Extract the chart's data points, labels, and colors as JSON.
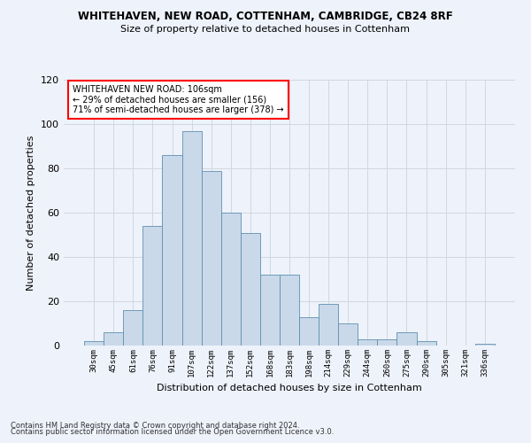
{
  "title1": "WHITEHAVEN, NEW ROAD, COTTENHAM, CAMBRIDGE, CB24 8RF",
  "title2": "Size of property relative to detached houses in Cottenham",
  "xlabel": "Distribution of detached houses by size in Cottenham",
  "ylabel": "Number of detached properties",
  "bin_labels": [
    "30sqm",
    "45sqm",
    "61sqm",
    "76sqm",
    "91sqm",
    "107sqm",
    "122sqm",
    "137sqm",
    "152sqm",
    "168sqm",
    "183sqm",
    "198sqm",
    "214sqm",
    "229sqm",
    "244sqm",
    "260sqm",
    "275sqm",
    "290sqm",
    "305sqm",
    "321sqm",
    "336sqm"
  ],
  "bar_heights": [
    2,
    6,
    16,
    54,
    86,
    97,
    79,
    60,
    51,
    32,
    32,
    13,
    19,
    10,
    3,
    3,
    6,
    2,
    0,
    0,
    1
  ],
  "bar_color": "#c9d9ea",
  "bar_edge_color": "#5f8faf",
  "annotation_line1": "WHITEHAVEN NEW ROAD: 106sqm",
  "annotation_line2": "← 29% of detached houses are smaller (156)",
  "annotation_line3": "71% of semi-detached houses are larger (378) →",
  "ylim": [
    0,
    120
  ],
  "yticks": [
    0,
    20,
    40,
    60,
    80,
    100,
    120
  ],
  "grid_color": "#d0d8e0",
  "background_color": "#eef2fa",
  "footnote1": "Contains HM Land Registry data © Crown copyright and database right 2024.",
  "footnote2": "Contains public sector information licensed under the Open Government Licence v3.0."
}
